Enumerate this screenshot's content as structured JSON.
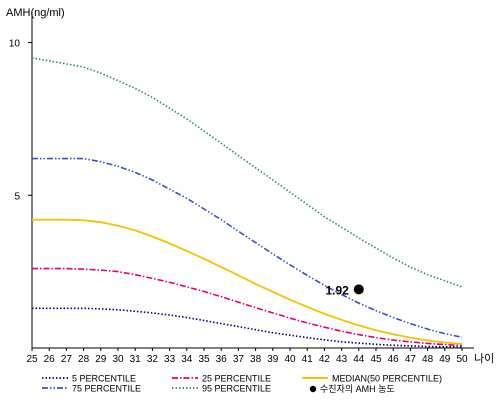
{
  "chart_data": {
    "type": "line",
    "title": "",
    "ylabel": "AMH(ng/ml)",
    "xlabel": "나이",
    "x": [
      25,
      26,
      27,
      28,
      29,
      30,
      31,
      32,
      33,
      34,
      35,
      36,
      37,
      38,
      39,
      40,
      41,
      42,
      43,
      44,
      45,
      46,
      47,
      48,
      49,
      50
    ],
    "xlim": [
      25,
      50
    ],
    "ylim": [
      0,
      11
    ],
    "yticks": [
      5,
      10
    ],
    "grid": false,
    "legend_position": "bottom",
    "series": [
      {
        "name": "5 PERCENTILE",
        "color": "#000080",
        "dash": "dotted",
        "values": [
          1.3,
          1.3,
          1.3,
          1.3,
          1.28,
          1.25,
          1.2,
          1.15,
          1.08,
          1.0,
          0.9,
          0.8,
          0.7,
          0.6,
          0.5,
          0.42,
          0.34,
          0.27,
          0.2,
          0.16,
          0.12,
          0.09,
          0.07,
          0.05,
          0.04,
          0.03
        ]
      },
      {
        "name": "25 PERCENTILE",
        "color": "#e0007a",
        "dash": "dashdot",
        "values": [
          2.6,
          2.6,
          2.6,
          2.58,
          2.55,
          2.5,
          2.4,
          2.28,
          2.15,
          2.0,
          1.85,
          1.68,
          1.5,
          1.32,
          1.15,
          0.98,
          0.82,
          0.68,
          0.55,
          0.44,
          0.34,
          0.26,
          0.2,
          0.15,
          0.11,
          0.08
        ]
      },
      {
        "name": "MEDIAN(50 PERCENTILE)",
        "color": "#f2c400",
        "dash": "solid",
        "values": [
          4.2,
          4.2,
          4.2,
          4.18,
          4.12,
          4.0,
          3.85,
          3.65,
          3.42,
          3.18,
          2.92,
          2.65,
          2.38,
          2.1,
          1.84,
          1.58,
          1.35,
          1.12,
          0.92,
          0.74,
          0.58,
          0.45,
          0.34,
          0.25,
          0.18,
          0.13
        ]
      },
      {
        "name": "75 PERCENTILE",
        "color": "#3b4fc4",
        "dash": "dashdotdot",
        "values": [
          6.2,
          6.2,
          6.2,
          6.2,
          6.1,
          5.95,
          5.75,
          5.5,
          5.2,
          4.9,
          4.55,
          4.2,
          3.82,
          3.45,
          3.08,
          2.72,
          2.38,
          2.05,
          1.75,
          1.47,
          1.22,
          1.0,
          0.8,
          0.62,
          0.47,
          0.35
        ]
      },
      {
        "name": "95 PERCENTILE",
        "color": "#2e8b57",
        "dash": "dotted",
        "values": [
          9.5,
          9.4,
          9.3,
          9.2,
          9.0,
          8.75,
          8.5,
          8.2,
          7.85,
          7.5,
          7.1,
          6.7,
          6.3,
          5.9,
          5.5,
          5.1,
          4.7,
          4.3,
          3.95,
          3.6,
          3.27,
          2.95,
          2.65,
          2.4,
          2.2,
          2.0
        ]
      }
    ],
    "marker": {
      "x": 44,
      "y": 1.92,
      "label": "1.92",
      "legend_label": "수진자의 AMH 농도"
    }
  }
}
